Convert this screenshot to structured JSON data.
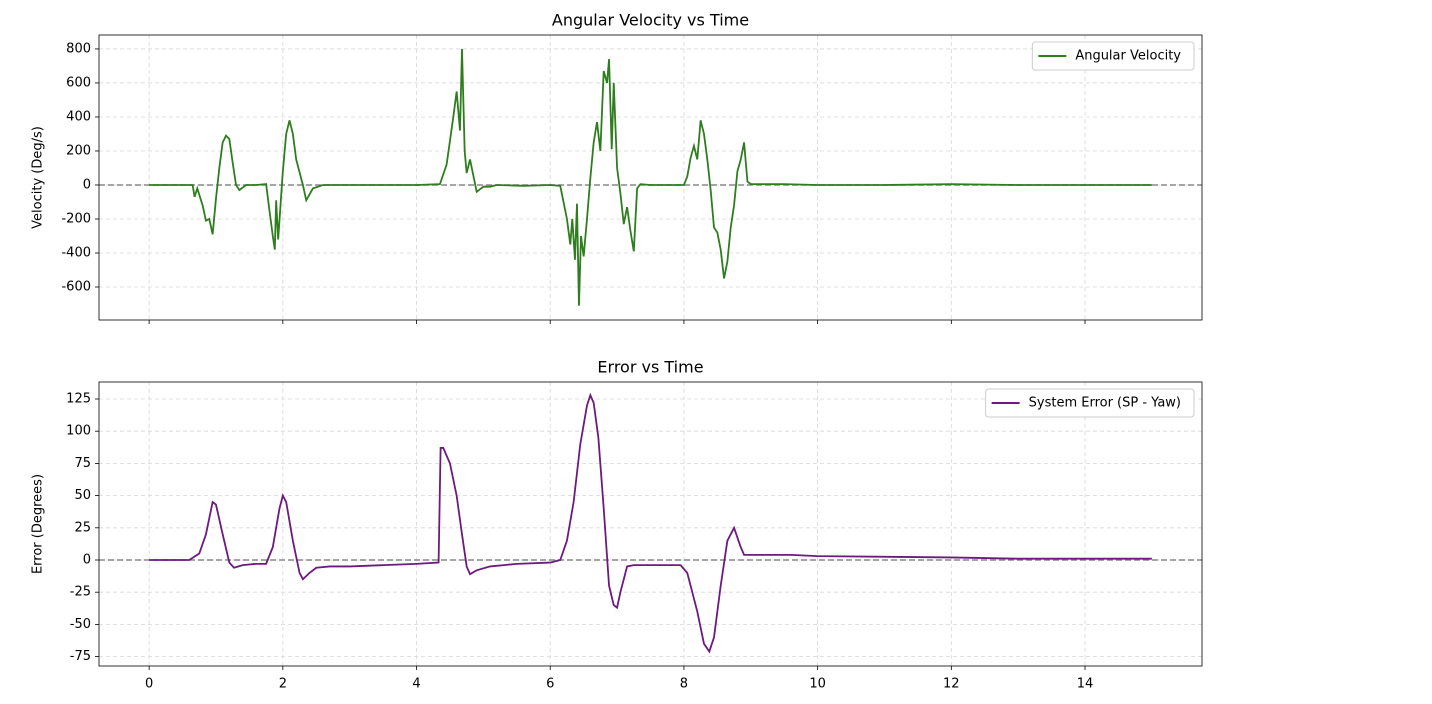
{
  "chart_data": [
    {
      "type": "line",
      "title": "Angular Velocity vs Time",
      "ylabel": "Velocity (Deg/s)",
      "x": [
        0,
        0.5,
        0.65,
        0.68,
        0.72,
        0.8,
        0.85,
        0.9,
        0.95,
        1.0,
        1.05,
        1.1,
        1.15,
        1.2,
        1.25,
        1.3,
        1.35,
        1.45,
        1.6,
        1.75,
        1.8,
        1.85,
        1.88,
        1.9,
        1.93,
        2.0,
        2.05,
        2.1,
        2.15,
        2.2,
        2.3,
        2.35,
        2.45,
        2.6,
        3.0,
        3.5,
        4.0,
        4.35,
        4.45,
        4.55,
        4.6,
        4.65,
        4.68,
        4.72,
        4.75,
        4.8,
        4.9,
        5.0,
        5.1,
        5.2,
        5.6,
        6.0,
        6.15,
        6.25,
        6.3,
        6.33,
        6.37,
        6.4,
        6.43,
        6.46,
        6.5,
        6.55,
        6.6,
        6.65,
        6.7,
        6.75,
        6.8,
        6.85,
        6.88,
        6.92,
        6.95,
        7.0,
        7.05,
        7.1,
        7.15,
        7.2,
        7.25,
        7.3,
        7.35,
        7.5,
        8.0,
        8.05,
        8.1,
        8.15,
        8.2,
        8.25,
        8.3,
        8.35,
        8.4,
        8.45,
        8.5,
        8.55,
        8.6,
        8.65,
        8.7,
        8.75,
        8.8,
        8.85,
        8.9,
        8.95,
        9.0,
        9.5,
        10,
        11,
        12,
        13,
        14,
        15
      ],
      "series": [
        {
          "name": "Angular Velocity",
          "color": "#2e7d1e",
          "values": [
            0,
            0,
            0,
            -70,
            -20,
            -120,
            -210,
            -200,
            -290,
            -80,
            100,
            250,
            290,
            270,
            130,
            0,
            -30,
            0,
            0,
            5,
            -150,
            -300,
            -380,
            -90,
            -320,
            80,
            300,
            380,
            300,
            150,
            0,
            -90,
            -20,
            0,
            0,
            0,
            0,
            5,
            120,
            400,
            550,
            320,
            800,
            200,
            70,
            150,
            -40,
            -10,
            -10,
            0,
            -5,
            0,
            -5,
            -200,
            -350,
            -200,
            -440,
            -110,
            -710,
            -300,
            -420,
            -200,
            40,
            250,
            370,
            200,
            670,
            600,
            740,
            210,
            600,
            100,
            -50,
            -230,
            -130,
            -270,
            -390,
            -20,
            5,
            0,
            0,
            50,
            160,
            230,
            150,
            380,
            300,
            150,
            -30,
            -250,
            -280,
            -380,
            -550,
            -450,
            -250,
            -120,
            80,
            150,
            250,
            20,
            5,
            5,
            0,
            0,
            5,
            0,
            0,
            0
          ]
        }
      ],
      "xlim": [
        -0.75,
        15.75
      ],
      "xticks": [
        0,
        2,
        4,
        6,
        8,
        10,
        12,
        14
      ],
      "show_xticklabels": false,
      "ylim": [
        -794,
        882
      ],
      "yticks": [
        -600,
        -400,
        -200,
        0,
        200,
        400,
        600,
        800
      ],
      "grid": true,
      "hline": 0,
      "legend": "upper right"
    },
    {
      "type": "line",
      "title": "Error vs Time",
      "ylabel": "Error (Degrees)",
      "x": [
        0,
        0.6,
        0.75,
        0.85,
        0.95,
        1.0,
        1.1,
        1.2,
        1.27,
        1.4,
        1.6,
        1.75,
        1.85,
        1.95,
        2.0,
        2.05,
        2.15,
        2.25,
        2.3,
        2.4,
        2.5,
        2.7,
        3.0,
        3.5,
        4.0,
        4.33,
        4.36,
        4.4,
        4.5,
        4.6,
        4.68,
        4.75,
        4.8,
        4.9,
        5.1,
        5.5,
        6.0,
        6.15,
        6.25,
        6.35,
        6.45,
        6.55,
        6.6,
        6.65,
        6.72,
        6.8,
        6.88,
        6.95,
        7.0,
        7.05,
        7.15,
        7.25,
        7.5,
        7.95,
        8.05,
        8.2,
        8.3,
        8.38,
        8.45,
        8.55,
        8.65,
        8.75,
        8.85,
        8.9,
        9.2,
        9.6,
        10,
        12,
        13,
        14,
        15
      ],
      "series": [
        {
          "name": "System Error (SP - Yaw)",
          "color": "#6c1a7e",
          "values": [
            0,
            0,
            5,
            20,
            45,
            43,
            20,
            -2,
            -6,
            -4,
            -3,
            -3,
            10,
            40,
            50,
            45,
            15,
            -10,
            -15,
            -10,
            -6,
            -5,
            -5,
            -4,
            -3,
            -2,
            87,
            87,
            75,
            50,
            20,
            -5,
            -11,
            -8,
            -5,
            -3,
            -2,
            0,
            15,
            45,
            90,
            120,
            128,
            122,
            95,
            40,
            -20,
            -35,
            -37,
            -25,
            -5,
            -4,
            -4,
            -4,
            -10,
            -40,
            -65,
            -71,
            -60,
            -20,
            15,
            25,
            10,
            4,
            4,
            4,
            3,
            2,
            1,
            1,
            1
          ]
        }
      ],
      "xlim": [
        -0.75,
        15.75
      ],
      "xticks": [
        0,
        2,
        4,
        6,
        8,
        10,
        12,
        14
      ],
      "show_xticklabels": true,
      "ylim": [
        -82.3,
        138.2
      ],
      "yticks": [
        -75,
        -50,
        -25,
        0,
        25,
        50,
        75,
        100,
        125
      ],
      "grid": true,
      "hline": 0,
      "legend": "upper right"
    }
  ]
}
